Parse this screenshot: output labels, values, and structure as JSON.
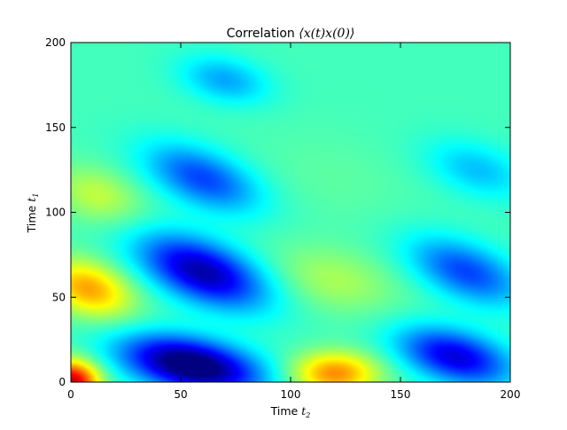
{
  "chart_data": {
    "type": "heatmap",
    "title": {
      "prefix": "Correlation ",
      "math": "⟨x(t)x(0)⟩"
    },
    "xlabel": {
      "text": "Time ",
      "var": "t",
      "sub": "2"
    },
    "ylabel": {
      "text": "Time ",
      "var": "t",
      "sub": "1"
    },
    "xlim": [
      0,
      200
    ],
    "ylim": [
      0,
      200
    ],
    "xticks": [
      0,
      50,
      100,
      150,
      200
    ],
    "xtick_labels": [
      "0",
      "50",
      "100",
      "150",
      "200"
    ],
    "yticks": [
      0,
      50,
      100,
      150,
      200
    ],
    "ytick_labels": [
      "0",
      "50",
      "100",
      "150",
      "200"
    ],
    "colormap": "jet",
    "grid": false,
    "legend": "none",
    "z_range": [
      -1,
      1
    ],
    "features": [
      {
        "t2": 0,
        "t1": 0,
        "value": 1.0,
        "sx": 9,
        "sy": 9,
        "rho": 0.0
      },
      {
        "t2": 8,
        "t1": 55,
        "value": 0.55,
        "sx": 14,
        "sy": 12,
        "rho": -0.3
      },
      {
        "t2": 12,
        "t1": 110,
        "value": 0.25,
        "sx": 14,
        "sy": 12,
        "rho": -0.3
      },
      {
        "t2": 120,
        "t1": 5,
        "value": 0.6,
        "sx": 14,
        "sy": 9,
        "rho": 0.0
      },
      {
        "t2": 120,
        "t1": 60,
        "value": 0.2,
        "sx": 20,
        "sy": 14,
        "rho": -0.3
      },
      {
        "t2": 55,
        "t1": 10,
        "value": -1.0,
        "sx": 22,
        "sy": 12,
        "rho": -0.4
      },
      {
        "t2": 60,
        "t1": 65,
        "value": -0.8,
        "sx": 20,
        "sy": 15,
        "rho": -0.5
      },
      {
        "t2": 60,
        "t1": 120,
        "value": -0.5,
        "sx": 18,
        "sy": 14,
        "rho": -0.5
      },
      {
        "t2": 70,
        "t1": 178,
        "value": -0.3,
        "sx": 14,
        "sy": 10,
        "rho": -0.3
      },
      {
        "t2": 175,
        "t1": 15,
        "value": -0.7,
        "sx": 18,
        "sy": 12,
        "rho": -0.4
      },
      {
        "t2": 180,
        "t1": 65,
        "value": -0.5,
        "sx": 18,
        "sy": 14,
        "rho": -0.5
      },
      {
        "t2": 185,
        "t1": 125,
        "value": -0.25,
        "sx": 16,
        "sy": 12,
        "rho": -0.4
      },
      {
        "t2": 120,
        "t1": 120,
        "value": 0.05,
        "sx": 25,
        "sy": 20,
        "rho": -0.3
      }
    ],
    "baseline": -0.12
  }
}
